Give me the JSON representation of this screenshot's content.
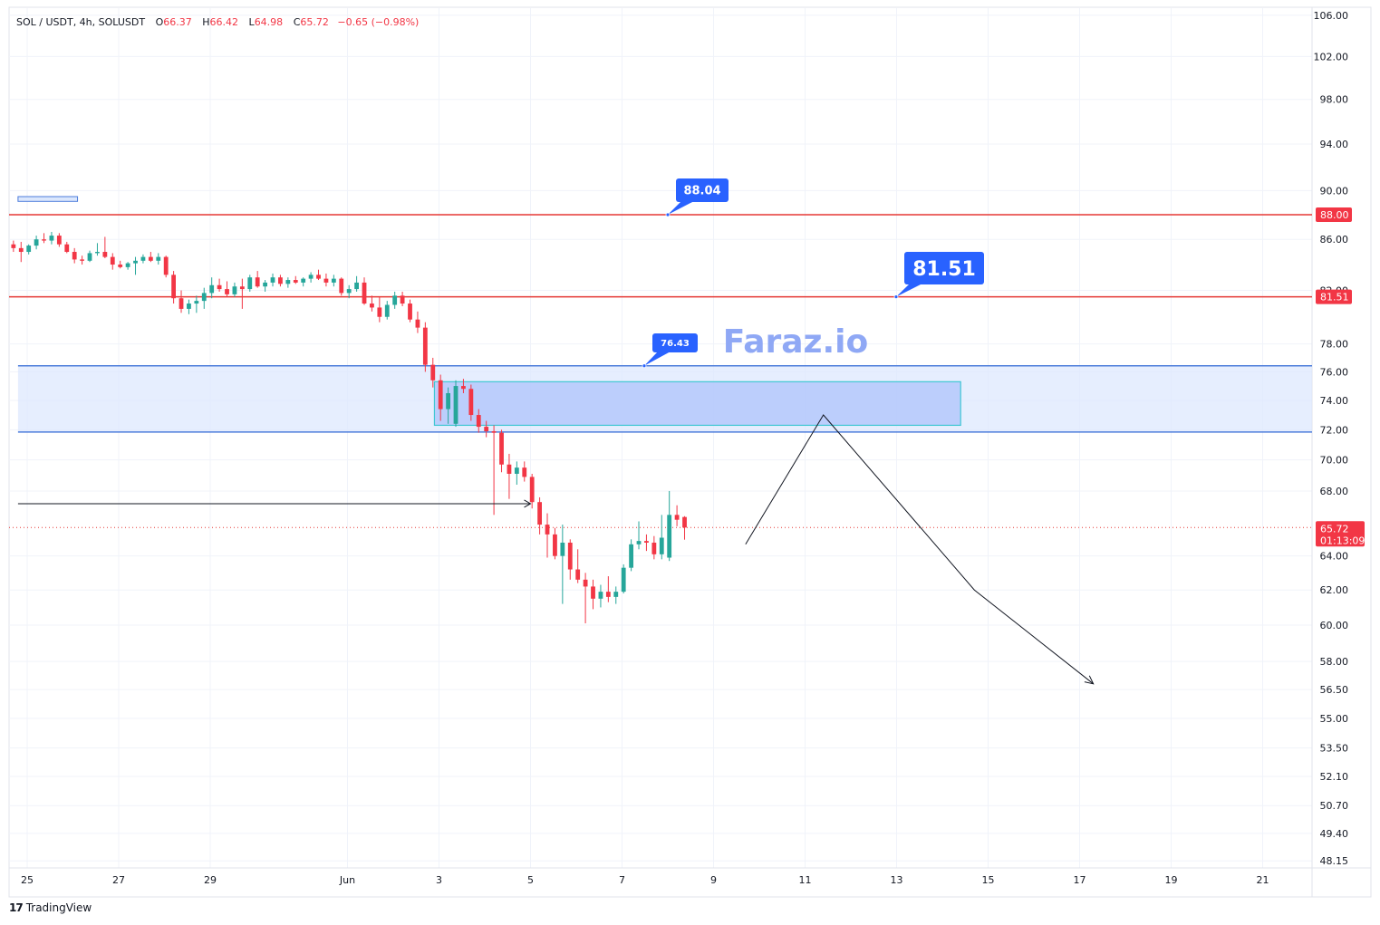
{
  "header": {
    "symbol": "SOL / USDT, 4h, SOLUSDT",
    "open_label": "O",
    "open": "66.37",
    "high_label": "H",
    "high": "66.42",
    "low_label": "L",
    "low": "64.98",
    "close_label": "C",
    "close": "65.72",
    "change": "−0.65 (−0.98%)"
  },
  "watermark": "Faraz.io",
  "branding": {
    "logo_mark": "17",
    "name": "TradingView"
  },
  "colors": {
    "up": "#26a69a",
    "down": "#f23645",
    "red_line": "#e53935",
    "zone_fill": "#dbe7fd",
    "zone_border": "#4d7ddb",
    "box_fill": "#b4c8fb",
    "box_border": "#3fc7d3",
    "callout": "#2962ff",
    "watermark": "#8fa8f5"
  },
  "chart_data": {
    "type": "candlestick",
    "symbol": "SOLUSDT",
    "timeframe": "4h",
    "y_axis_ticks": [
      "106.00",
      "102.00",
      "98.00",
      "94.00",
      "90.00",
      "86.00",
      "82.00",
      "78.00",
      "76.00",
      "74.00",
      "72.00",
      "70.00",
      "68.00",
      "64.00",
      "62.00",
      "60.00",
      "58.00",
      "56.50",
      "55.00",
      "53.50",
      "52.10",
      "50.70",
      "49.40",
      "48.15"
    ],
    "x_axis_ticks": [
      {
        "label": "25",
        "day": 25
      },
      {
        "label": "27",
        "day": 27
      },
      {
        "label": "29",
        "day": 29
      },
      {
        "label": "Jun",
        "day": 32
      },
      {
        "label": "3",
        "day": 34
      },
      {
        "label": "5",
        "day": 36
      },
      {
        "label": "7",
        "day": 38
      },
      {
        "label": "9",
        "day": 40
      },
      {
        "label": "11",
        "day": 42
      },
      {
        "label": "13",
        "day": 44
      },
      {
        "label": "15",
        "day": 46
      },
      {
        "label": "17",
        "day": 48
      },
      {
        "label": "19",
        "day": 50
      },
      {
        "label": "21",
        "day": 52
      }
    ],
    "candles": [
      [
        85.6,
        85.9,
        85.0,
        85.3
      ],
      [
        85.3,
        85.8,
        84.2,
        85.0
      ],
      [
        85.0,
        85.6,
        84.8,
        85.5
      ],
      [
        85.5,
        86.3,
        85.2,
        86.0
      ],
      [
        86.0,
        86.5,
        85.7,
        85.9
      ],
      [
        85.9,
        86.6,
        85.6,
        86.3
      ],
      [
        86.3,
        86.5,
        85.4,
        85.6
      ],
      [
        85.6,
        85.8,
        84.9,
        85.0
      ],
      [
        85.0,
        85.3,
        84.1,
        84.4
      ],
      [
        84.4,
        84.7,
        84.0,
        84.3
      ],
      [
        84.3,
        85.1,
        84.2,
        84.9
      ],
      [
        84.9,
        85.7,
        84.7,
        85.0
      ],
      [
        85.0,
        86.2,
        84.5,
        84.6
      ],
      [
        84.6,
        84.9,
        83.6,
        84.0
      ],
      [
        84.0,
        84.3,
        83.7,
        83.8
      ],
      [
        83.8,
        84.2,
        83.6,
        84.1
      ],
      [
        84.1,
        84.6,
        83.2,
        84.3
      ],
      [
        84.3,
        84.8,
        84.1,
        84.6
      ],
      [
        84.6,
        85.0,
        84.2,
        84.3
      ],
      [
        84.3,
        84.9,
        84.0,
        84.6
      ],
      [
        84.6,
        84.7,
        83.0,
        83.2
      ],
      [
        83.2,
        83.5,
        81.0,
        81.4
      ],
      [
        81.4,
        82.0,
        80.3,
        80.6
      ],
      [
        80.6,
        81.3,
        80.2,
        81.0
      ],
      [
        81.0,
        81.6,
        80.3,
        81.2
      ],
      [
        81.2,
        82.2,
        80.6,
        81.8
      ],
      [
        81.8,
        83.0,
        81.4,
        82.4
      ],
      [
        82.4,
        82.9,
        81.9,
        82.1
      ],
      [
        82.1,
        82.7,
        81.5,
        81.7
      ],
      [
        81.7,
        82.6,
        81.5,
        82.3
      ],
      [
        82.3,
        82.9,
        80.6,
        82.1
      ],
      [
        82.1,
        83.2,
        81.9,
        83.0
      ],
      [
        83.0,
        83.5,
        82.2,
        82.3
      ],
      [
        82.3,
        82.8,
        81.9,
        82.6
      ],
      [
        82.6,
        83.3,
        82.3,
        83.0
      ],
      [
        83.0,
        83.2,
        82.3,
        82.5
      ],
      [
        82.5,
        83.0,
        82.2,
        82.8
      ],
      [
        82.8,
        83.1,
        82.5,
        82.6
      ],
      [
        82.6,
        83.0,
        82.3,
        82.9
      ],
      [
        82.9,
        83.4,
        82.6,
        83.2
      ],
      [
        83.2,
        83.6,
        82.8,
        82.9
      ],
      [
        82.9,
        83.3,
        82.3,
        82.6
      ],
      [
        82.6,
        83.2,
        82.3,
        82.9
      ],
      [
        82.9,
        83.0,
        81.6,
        81.8
      ],
      [
        81.8,
        82.4,
        81.4,
        82.1
      ],
      [
        82.1,
        83.1,
        81.9,
        82.6
      ],
      [
        82.6,
        83.0,
        80.9,
        81.0
      ],
      [
        81.0,
        81.6,
        80.4,
        80.7
      ],
      [
        80.7,
        81.5,
        79.6,
        80.0
      ],
      [
        80.0,
        81.2,
        79.8,
        80.9
      ],
      [
        80.9,
        81.9,
        80.6,
        81.6
      ],
      [
        81.6,
        81.9,
        80.8,
        81.0
      ],
      [
        81.0,
        81.3,
        79.6,
        79.8
      ],
      [
        79.8,
        80.4,
        78.8,
        79.2
      ],
      [
        79.2,
        79.6,
        76.0,
        76.5
      ],
      [
        76.5,
        77.0,
        74.9,
        75.4
      ],
      [
        75.4,
        75.8,
        72.6,
        73.4
      ],
      [
        73.4,
        74.9,
        72.4,
        74.5
      ],
      [
        72.4,
        75.4,
        72.2,
        75.0
      ],
      [
        75.0,
        75.5,
        74.5,
        74.8
      ],
      [
        74.8,
        75.1,
        72.6,
        73.0
      ],
      [
        73.0,
        73.4,
        71.8,
        72.2
      ],
      [
        72.2,
        72.6,
        71.5,
        71.9
      ],
      [
        71.9,
        72.3,
        66.5,
        71.8
      ],
      [
        71.8,
        72.0,
        69.2,
        69.7
      ],
      [
        69.7,
        70.4,
        67.5,
        69.1
      ],
      [
        69.1,
        69.9,
        68.4,
        69.5
      ],
      [
        69.5,
        69.9,
        68.6,
        68.9
      ],
      [
        68.9,
        69.1,
        66.9,
        67.3
      ],
      [
        67.3,
        67.6,
        65.3,
        65.9
      ],
      [
        65.9,
        66.6,
        63.9,
        65.3
      ],
      [
        65.3,
        65.7,
        63.8,
        64.0
      ],
      [
        64.0,
        65.9,
        61.2,
        64.8
      ],
      [
        64.8,
        65.0,
        62.6,
        63.2
      ],
      [
        63.2,
        64.4,
        62.4,
        62.6
      ],
      [
        62.6,
        63.0,
        60.1,
        62.2
      ],
      [
        62.2,
        62.6,
        60.9,
        61.5
      ],
      [
        61.5,
        62.3,
        61.0,
        61.9
      ],
      [
        61.9,
        62.8,
        61.3,
        61.6
      ],
      [
        61.6,
        62.2,
        61.2,
        61.9
      ],
      [
        61.9,
        63.5,
        61.8,
        63.3
      ],
      [
        63.3,
        65.0,
        63.1,
        64.7
      ],
      [
        64.7,
        66.1,
        64.4,
        64.9
      ],
      [
        64.9,
        65.3,
        64.3,
        64.8
      ],
      [
        64.8,
        65.2,
        63.8,
        64.1
      ],
      [
        64.1,
        66.5,
        63.8,
        65.1
      ],
      [
        63.9,
        68.0,
        63.7,
        66.5
      ],
      [
        66.5,
        67.1,
        65.8,
        66.2
      ],
      [
        66.37,
        66.42,
        64.98,
        65.72
      ]
    ],
    "horizontal_levels": [
      {
        "price": 88.0,
        "label": "88.00",
        "style": "solid-red"
      },
      {
        "price": 81.51,
        "label": "81.51",
        "style": "solid-red"
      },
      {
        "price": 65.72,
        "label": "65.72",
        "style": "dotted-red",
        "countdown": "01:13:09"
      }
    ],
    "callouts": [
      {
        "text": "88.04",
        "size": "small"
      },
      {
        "text": "81.51",
        "size": "large"
      },
      {
        "text": "76.43",
        "size": "tiny"
      }
    ],
    "zones": [
      {
        "top": 76.43,
        "bottom": 71.85,
        "start_day": 24.8,
        "end_day": "right-edge",
        "type": "resistance"
      },
      {
        "top": 75.3,
        "bottom": 72.3,
        "start_day": 33.9,
        "end_day": 45.4,
        "type": "order-block"
      },
      {
        "top": 89.5,
        "bottom": 89.1,
        "start_day": 24.8,
        "end_day": 26.1,
        "type": "small-box"
      }
    ],
    "arrows": [
      {
        "from": [
          24.8,
          67.2
        ],
        "to": [
          36.0,
          67.2
        ]
      }
    ],
    "projection": [
      [
        40.7,
        64.7
      ],
      [
        42.4,
        73.0
      ],
      [
        45.7,
        62.0
      ],
      [
        48.3,
        56.8
      ]
    ]
  }
}
